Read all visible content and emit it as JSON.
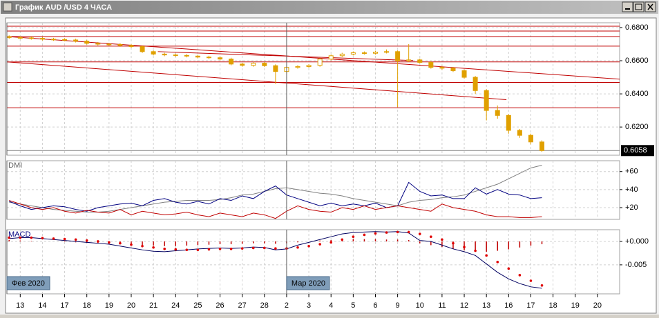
{
  "window": {
    "title": "График AUD /USD 4 ЧАСА"
  },
  "x_axis": {
    "categories": [
      "13",
      "14",
      "17",
      "18",
      "19",
      "20",
      "21",
      "24",
      "25",
      "26",
      "27",
      "28",
      "2",
      "3",
      "4",
      "5",
      "6",
      "9",
      "10",
      "11",
      "12",
      "13",
      "16",
      "17",
      "18",
      "19",
      "20"
    ],
    "xlim": [
      -0.6,
      27
    ],
    "month_labels": [
      {
        "value": -0.6,
        "label": "Фев 2020"
      },
      {
        "value": 12,
        "label": "Мар 2020"
      }
    ]
  },
  "chart_data": [
    {
      "type": "candlestick",
      "color": "#e0a000",
      "x": [
        -0.5,
        0,
        0.5,
        1,
        1.5,
        2,
        2.5,
        3,
        3.5,
        4,
        4.5,
        5,
        5.5,
        6,
        6.5,
        7,
        7.5,
        8,
        8.5,
        9,
        9.5,
        10,
        10.5,
        11,
        11.5,
        12,
        12.5,
        13,
        13.5,
        14,
        14.5,
        15,
        15.5,
        16,
        16.5,
        17,
        17.5,
        18,
        18.5,
        19,
        19.5,
        20,
        20.5,
        21,
        21.5,
        22,
        22.5,
        23,
        23.5
      ],
      "open": [
        0.6745,
        0.674,
        0.6738,
        0.6735,
        0.673,
        0.6728,
        0.6725,
        0.6718,
        0.6705,
        0.67,
        0.6698,
        0.6692,
        0.6685,
        0.6655,
        0.664,
        0.6635,
        0.6632,
        0.6628,
        0.6622,
        0.6618,
        0.661,
        0.658,
        0.6572,
        0.6585,
        0.657,
        0.6535,
        0.656,
        0.6565,
        0.6572,
        0.661,
        0.663,
        0.664,
        0.6648,
        0.6645,
        0.6652,
        0.6655,
        0.66,
        0.6605,
        0.659,
        0.656,
        0.6555,
        0.654,
        0.65,
        0.642,
        0.63,
        0.627,
        0.618,
        0.615,
        0.611
      ],
      "high": [
        0.6753,
        0.6748,
        0.6746,
        0.6743,
        0.6738,
        0.6736,
        0.6733,
        0.6726,
        0.6713,
        0.6708,
        0.6706,
        0.67,
        0.6693,
        0.6663,
        0.6648,
        0.6643,
        0.664,
        0.6636,
        0.663,
        0.6626,
        0.6618,
        0.6588,
        0.6593,
        0.6593,
        0.6578,
        0.6568,
        0.6573,
        0.658,
        0.6618,
        0.6638,
        0.6648,
        0.6656,
        0.6656,
        0.666,
        0.6668,
        0.6663,
        0.67,
        0.6613,
        0.6598,
        0.657,
        0.6563,
        0.6548,
        0.6508,
        0.6428,
        0.633,
        0.6278,
        0.6188,
        0.616,
        0.612
      ],
      "low": [
        0.6732,
        0.673,
        0.6727,
        0.6722,
        0.672,
        0.6717,
        0.671,
        0.6697,
        0.6692,
        0.669,
        0.6684,
        0.6677,
        0.6647,
        0.6632,
        0.6627,
        0.6624,
        0.662,
        0.6614,
        0.661,
        0.6602,
        0.6572,
        0.6564,
        0.6564,
        0.6562,
        0.646,
        0.6527,
        0.6552,
        0.6557,
        0.6564,
        0.6602,
        0.6622,
        0.6632,
        0.6637,
        0.6637,
        0.6644,
        0.632,
        0.6592,
        0.6582,
        0.6552,
        0.6545,
        0.6532,
        0.6492,
        0.64,
        0.624,
        0.625,
        0.616,
        0.6135,
        0.6095,
        0.605
      ],
      "close": [
        0.674,
        0.6738,
        0.6735,
        0.673,
        0.6728,
        0.6725,
        0.6718,
        0.6705,
        0.67,
        0.6698,
        0.6692,
        0.6685,
        0.6655,
        0.664,
        0.6635,
        0.6632,
        0.6628,
        0.6622,
        0.6618,
        0.661,
        0.658,
        0.6572,
        0.6585,
        0.657,
        0.6535,
        0.656,
        0.6565,
        0.6572,
        0.661,
        0.663,
        0.664,
        0.6648,
        0.6645,
        0.6652,
        0.6655,
        0.66,
        0.6605,
        0.659,
        0.656,
        0.6555,
        0.654,
        0.65,
        0.642,
        0.63,
        0.627,
        0.618,
        0.615,
        0.611,
        0.6058
      ],
      "ylim": [
        0.603,
        0.6829
      ],
      "yticks": [
        {
          "value": 0.68,
          "label": "0.6800"
        },
        {
          "value": 0.66,
          "label": "0.6600"
        },
        {
          "value": 0.64,
          "label": "0.6400"
        },
        {
          "value": 0.62,
          "label": "0.6200"
        }
      ],
      "last_price": 0.6058,
      "line_color": "#c00000",
      "hlines": [
        0.6808,
        0.6779,
        0.6746,
        0.6688,
        0.6593,
        0.6469,
        0.6316
      ],
      "trendlines": [
        {
          "x": [
            -0.6,
            27
          ],
          "y": [
            0.6746,
            0.6489
          ]
        },
        {
          "x": [
            -0.6,
            21.9
          ],
          "y": [
            0.6593,
            0.6365
          ]
        },
        {
          "x": [
            6.2,
            17.7
          ],
          "y": [
            0.6655,
            0.6601
          ]
        }
      ]
    },
    {
      "type": "line",
      "title": "DMI",
      "ylim": [
        7,
        72
      ],
      "yticks": [
        {
          "value": 60,
          "label": "+60"
        },
        {
          "value": 40,
          "label": "+40"
        },
        {
          "value": 20,
          "label": "+20"
        }
      ],
      "series": [
        {
          "color": "#808080",
          "values": [
            26,
            24,
            22,
            20,
            18,
            17,
            16,
            15,
            15,
            16,
            18,
            20,
            22,
            24,
            26,
            27,
            28,
            28,
            28,
            29,
            31,
            34,
            35,
            38,
            41,
            42,
            40,
            38,
            36,
            35,
            33,
            30,
            28,
            26,
            24,
            22,
            26,
            28,
            29,
            31,
            32,
            34,
            38,
            42,
            46,
            52,
            58,
            64,
            67
          ]
        },
        {
          "color": "#000080",
          "values": [
            27,
            22,
            18,
            20,
            22,
            21,
            18,
            16,
            20,
            22,
            24,
            25,
            22,
            28,
            30,
            26,
            24,
            27,
            24,
            30,
            28,
            33,
            30,
            38,
            44,
            34,
            30,
            26,
            22,
            25,
            22,
            24,
            22,
            25,
            20,
            22,
            48,
            38,
            33,
            34,
            30,
            30,
            42,
            35,
            40,
            35,
            34,
            30,
            31
          ]
        },
        {
          "color": "#c00000",
          "values": [
            28,
            24,
            20,
            18,
            20,
            16,
            14,
            17,
            15,
            14,
            18,
            12,
            16,
            14,
            12,
            13,
            15,
            12,
            10,
            14,
            12,
            10,
            14,
            12,
            8,
            16,
            22,
            18,
            16,
            15,
            20,
            18,
            22,
            18,
            20,
            22,
            20,
            18,
            16,
            24,
            20,
            18,
            16,
            12,
            10,
            10,
            9,
            9,
            10
          ]
        }
      ]
    },
    {
      "type": "macd",
      "title": "MACD",
      "ylim": [
        -0.0112,
        0.0025
      ],
      "yticks": [
        {
          "value": 0,
          "label": "+0.000"
        },
        {
          "value": -0.005,
          "label": "-0.005"
        }
      ],
      "series": [
        {
          "kind": "histogram",
          "color": "#c00000",
          "values": [
            0.0003,
            0.0002,
            0.0001,
            0,
            0,
            -0.0001,
            -0.0002,
            -0.0003,
            -0.0004,
            -0.0005,
            -0.0006,
            -0.0007,
            -0.0008,
            -0.0009,
            -0.001,
            -0.001,
            -0.0009,
            -0.0008,
            -0.0007,
            -0.0006,
            -0.0006,
            -0.0005,
            -0.0004,
            -0.0004,
            -0.0005,
            -0.0004,
            -0.0002,
            0,
            0.0002,
            0.0003,
            0.0004,
            0.0005,
            0.0005,
            0.0005,
            0.0004,
            0.0004,
            0.0003,
            -0.0004,
            -0.0008,
            -0.0012,
            -0.0016,
            -0.0019,
            -0.0021,
            -0.0022,
            -0.002,
            -0.0017,
            -0.0013,
            -0.0009,
            -0.0006
          ]
        },
        {
          "kind": "line",
          "color": "#000060",
          "values": [
            0.0006,
            0.0008,
            0.0008,
            0.0006,
            0.0004,
            0.0002,
            0,
            -0.0002,
            -0.0004,
            -0.0006,
            -0.001,
            -0.0014,
            -0.0018,
            -0.0021,
            -0.0022,
            -0.002,
            -0.0018,
            -0.0016,
            -0.0015,
            -0.0014,
            -0.0015,
            -0.0014,
            -0.0012,
            -0.0013,
            -0.0018,
            -0.0016,
            -0.0008,
            -0.0002,
            0.0004,
            0.001,
            0.0016,
            0.0019,
            0.002,
            0.0021,
            0.002,
            0.0021,
            0.0018,
            0.0002,
            0,
            -0.0008,
            -0.0016,
            -0.0022,
            -0.003,
            -0.0048,
            -0.0066,
            -0.008,
            -0.009,
            -0.0097,
            -0.01
          ]
        },
        {
          "kind": "dots",
          "color": "#e00000",
          "values": [
            0.0008,
            0.0008,
            0.0008,
            0.0007,
            0.0006,
            0.0005,
            0.0004,
            0.0002,
            0,
            -0.0002,
            -0.0004,
            -0.0007,
            -0.001,
            -0.0013,
            -0.0016,
            -0.0017,
            -0.0018,
            -0.0018,
            -0.0017,
            -0.0016,
            -0.0016,
            -0.0015,
            -0.0014,
            -0.0014,
            -0.0015,
            -0.0015,
            -0.0013,
            -0.001,
            -0.0006,
            -0.0002,
            0.0004,
            0.001,
            0.0014,
            0.0017,
            0.0019,
            0.002,
            0.002,
            0.0016,
            0.001,
            0.0004,
            -0.0004,
            -0.0012,
            -0.002,
            -0.003,
            -0.0044,
            -0.0058,
            -0.0072,
            -0.0084,
            -0.0094
          ]
        }
      ]
    }
  ]
}
